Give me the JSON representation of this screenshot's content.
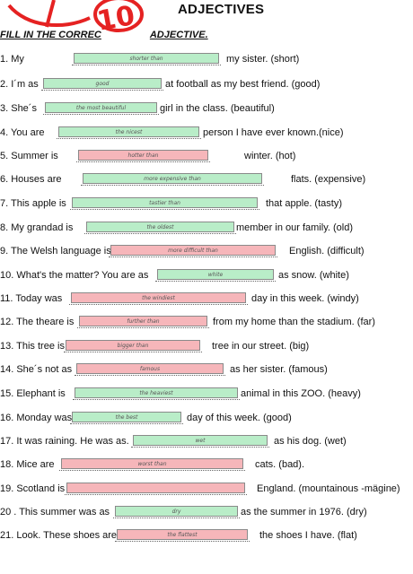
{
  "title": "ADJECTIVES",
  "instruction_left": "FILL IN THE CORREC",
  "instruction_right": "ADJECTIVE.",
  "grade": "10",
  "colors": {
    "green": "#b9edc8",
    "red": "#f6b6ba",
    "mark": "#e52222"
  },
  "rows": [
    {
      "pre": "1. My",
      "ans": "shorter than",
      "post": "my sister. (short)",
      "c": "g"
    },
    {
      "pre": "2. I´m  as",
      "ans": "good",
      "post": "at football as my best friend. (good)",
      "c": "g"
    },
    {
      "pre": "3. She´s",
      "ans": "the most beautiful",
      "post": "girl in the class. (beautiful)",
      "c": "g"
    },
    {
      "pre": "4.  You are",
      "ans": "the nicest",
      "post": "person I have ever known.(nice)",
      "c": "g"
    },
    {
      "pre": "5. Summer is",
      "ans": "hotter than",
      "post": "winter. (hot)",
      "c": "r"
    },
    {
      "pre": "6. Houses are",
      "ans": "more expensive than",
      "post": "flats. (expensive)",
      "c": "g"
    },
    {
      "pre": "7.  This apple is",
      "ans": "tastier than",
      "post": "that apple. (tasty)",
      "c": "g"
    },
    {
      "pre": "8.  My grandad is",
      "ans": "the oldest",
      "post": "member in our family. (old)",
      "c": "g"
    },
    {
      "pre": "9. The Welsh language is",
      "ans": "more difficult than",
      "post": "English. (difficult)",
      "c": "r"
    },
    {
      "pre": "10.  What's the matter? You are  as",
      "ans": "white",
      "post": "as snow. (white)",
      "c": "g"
    },
    {
      "pre": "11. Today was",
      "ans": "the windiest",
      "post": "day in this week. (windy)",
      "c": "r"
    },
    {
      "pre": "12.  The theare is",
      "ans": "further than",
      "post": "from  my home than the stadium. (far)",
      "c": "r"
    },
    {
      "pre": "13. This tree is",
      "ans": "bigger than",
      "post": "tree in our street. (big)",
      "c": "r"
    },
    {
      "pre": "14.  She´s  not as",
      "ans": "famous",
      "post": "as her sister. (famous)",
      "c": "r"
    },
    {
      "pre": "15.  Elephant is",
      "ans": "the heaviest",
      "post": "animal in this ZOO. (heavy)",
      "c": "g"
    },
    {
      "pre": "16. Monday was",
      "ans": "the best",
      "post": "day of  this week. (good)",
      "c": "g"
    },
    {
      "pre": "17. It was raining. He was as.",
      "ans": "wet",
      "post": "as his dog. (wet)",
      "c": "g"
    },
    {
      "pre": "18. Mice  are",
      "ans": "worst than",
      "post": "cats. (bad).",
      "c": "r"
    },
    {
      "pre": "19. Scotland is",
      "ans": "",
      "post": "England. (mountainous -mägine)",
      "c": "r"
    },
    {
      "pre": "20 .  This summer was as",
      "ans": "dry",
      "post": "as the summer in 1976. (dry)",
      "c": "g"
    },
    {
      "pre": "21.  Look. These shoes are",
      "ans": "the flattest",
      "post": "the shoes I have. (flat)",
      "c": "r"
    }
  ]
}
